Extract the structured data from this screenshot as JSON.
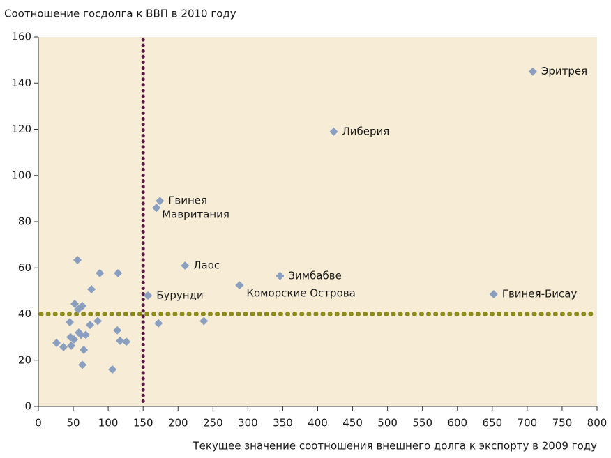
{
  "chart_data": {
    "type": "scatter",
    "title": "Соотношение госдолга к ВВП в 2010 году",
    "x_label": "Текущее значение соотношения внешнего долга к экспорту в 2009 году",
    "color": "#8a9fc0",
    "background": "#f7ecd5",
    "x": [
      708,
      423,
      174,
      169,
      210,
      346,
      288,
      157,
      652,
      56,
      88,
      114,
      76,
      52,
      63,
      57,
      45,
      74,
      85,
      172,
      237,
      113,
      58,
      68,
      61,
      46,
      51,
      117,
      126,
      26,
      36,
      47,
      65,
      63,
      106
    ],
    "values": [
      145,
      119,
      89,
      86,
      61,
      56.5,
      52.5,
      48,
      48.6,
      63.4,
      57.7,
      57.7,
      50.7,
      44.4,
      43.5,
      42,
      36.5,
      35.3,
      37,
      36,
      37,
      33,
      32,
      31,
      31,
      30,
      29,
      28.4,
      28,
      27.5,
      25.7,
      26.3,
      24.5,
      18,
      16
    ],
    "labels": [
      "Эритрея",
      "Либерия",
      "Гвинея",
      "Мавритания",
      "Лаос",
      "Зимбабве",
      "Коморские Острова",
      "Бурунди",
      "Гвинея-Бисау",
      null,
      null,
      null,
      null,
      null,
      null,
      null,
      null,
      null,
      null,
      null,
      null,
      null,
      null,
      null,
      null,
      null,
      null,
      null,
      null,
      null,
      null,
      null,
      null,
      null,
      null
    ],
    "reference_lines": {
      "x": 150,
      "y": 40,
      "x_color": "#5a1547",
      "y_color": "#8c8a1c"
    },
    "xlim": [
      0,
      800
    ],
    "xticks": [
      0,
      50,
      100,
      150,
      200,
      250,
      300,
      350,
      400,
      450,
      500,
      550,
      600,
      650,
      700,
      750,
      800
    ],
    "ylim": [
      0,
      160
    ],
    "yticks": [
      0,
      20,
      40,
      60,
      80,
      100,
      120,
      140,
      160
    ]
  }
}
